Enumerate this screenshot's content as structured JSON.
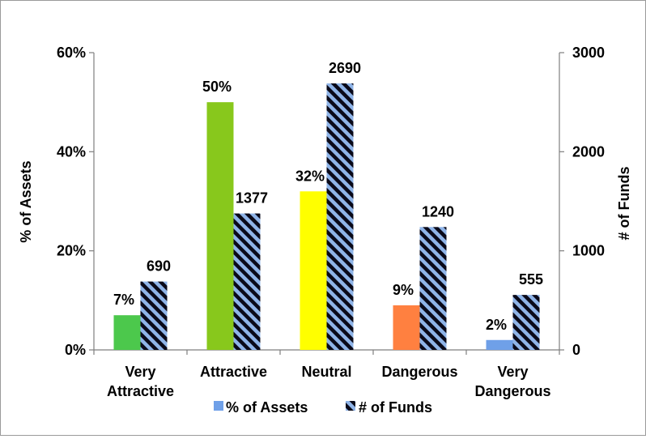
{
  "chart_data": {
    "type": "bar",
    "categories": [
      [
        "Very",
        "Attractive"
      ],
      [
        "Attractive"
      ],
      [
        "Neutral"
      ],
      [
        "Dangerous"
      ],
      [
        "Very",
        "Dangerous"
      ]
    ],
    "series": [
      {
        "name": "% of Assets",
        "axis": "left",
        "values": [
          7,
          50,
          32,
          9,
          2
        ],
        "labels": [
          "7%",
          "50%",
          "32%",
          "9%",
          "2%"
        ],
        "colors": [
          "#4cc84c",
          "#88c81c",
          "#ffff00",
          "#ff8040",
          "#6fa0e8"
        ]
      },
      {
        "name": "# of Funds",
        "axis": "right",
        "values": [
          690,
          1377,
          2690,
          1240,
          555
        ],
        "labels": [
          "690",
          "1377",
          "2690",
          "1240",
          "555"
        ],
        "pattern": "diagonal-stripes",
        "colors": [
          "#0a0a1a",
          "#8fb4e8"
        ]
      }
    ],
    "ylabel_left": "% of Assets",
    "ylabel_right": "# of Funds",
    "ylim_left": [
      0,
      60
    ],
    "ylim_right": [
      0,
      3000
    ],
    "yticks_left": [
      "0%",
      "20%",
      "40%",
      "60%"
    ],
    "yticks_right": [
      "0",
      "1000",
      "2000",
      "3000"
    ],
    "grid": false,
    "legend": "bottom"
  }
}
